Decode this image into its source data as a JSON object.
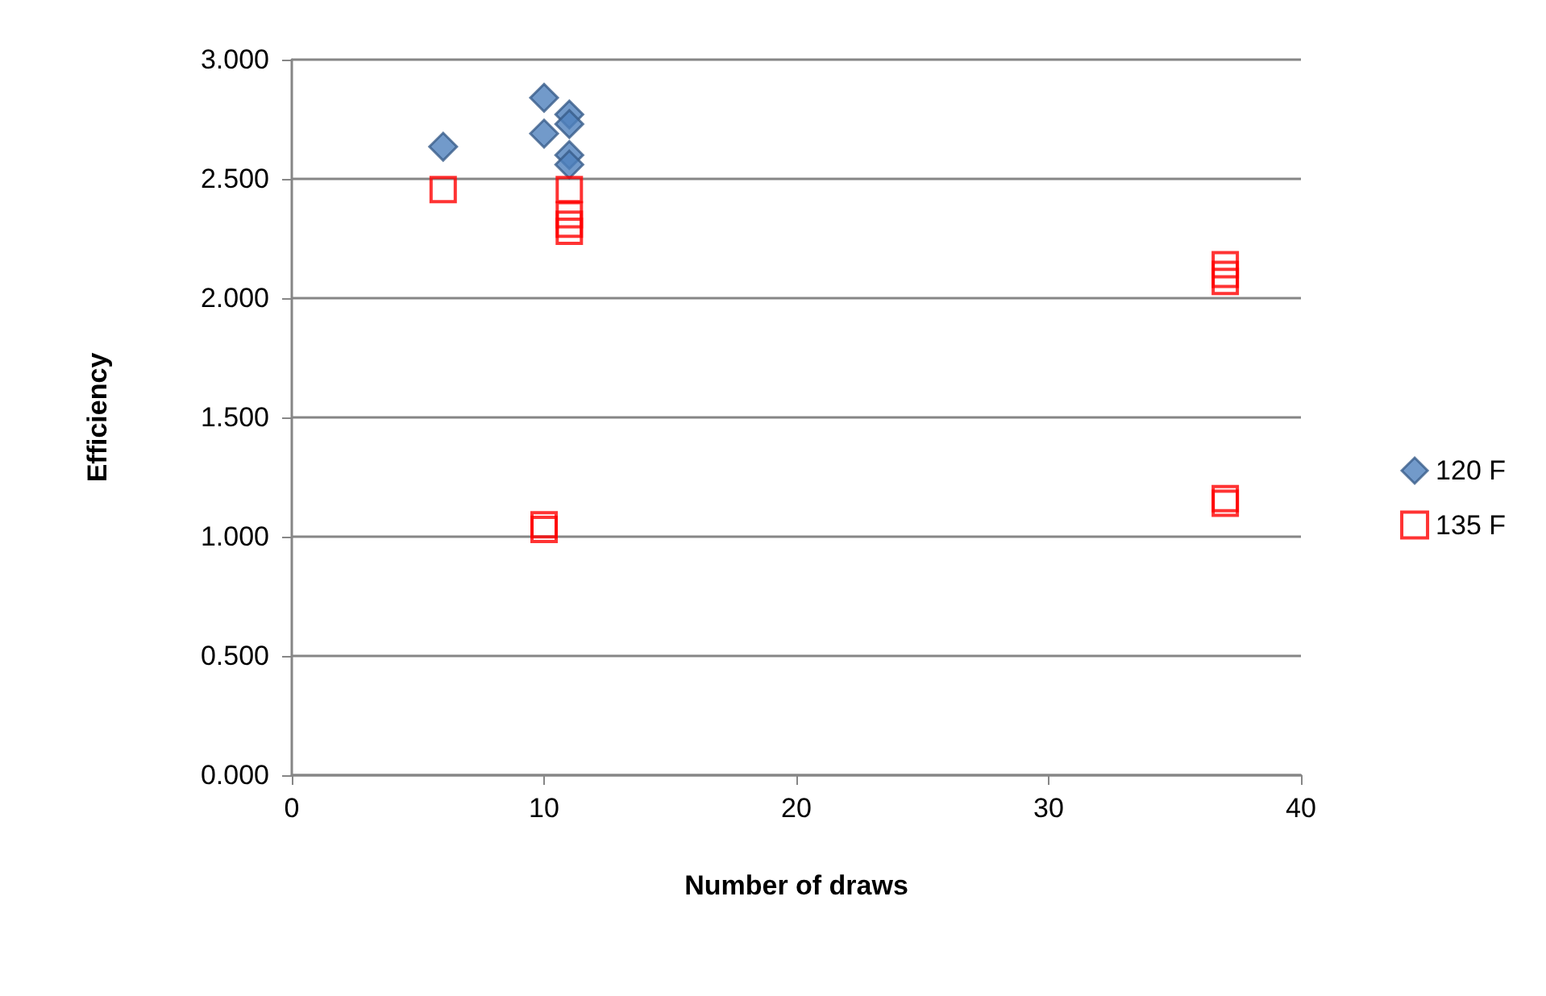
{
  "chart_data": {
    "type": "scatter",
    "xlabel": "Number of draws",
    "ylabel": "Efficiency",
    "xlim": [
      0,
      40
    ],
    "xticks": [
      0,
      10,
      20,
      30,
      40
    ],
    "ylim": [
      0,
      3
    ],
    "yticks": [
      {
        "value": 0,
        "label": "0.000"
      },
      {
        "value": 0.5,
        "label": "0.500"
      },
      {
        "value": 1,
        "label": "1.000"
      },
      {
        "value": 1.5,
        "label": "1.500"
      },
      {
        "value": 2,
        "label": "2.000"
      },
      {
        "value": 2.5,
        "label": "2.500"
      },
      {
        "value": 3,
        "label": "3.000"
      }
    ],
    "grid": "y",
    "legend": "right",
    "series": [
      {
        "name": "120 F",
        "color": "#4f81bd",
        "marker": "diamond",
        "x": [
          6,
          10,
          10,
          11,
          11,
          11,
          11
        ],
        "values": [
          2.635,
          2.84,
          2.69,
          2.77,
          2.73,
          2.6,
          2.56
        ]
      },
      {
        "name": "135 F",
        "color": "#ff0000",
        "marker": "square",
        "x": [
          6,
          11,
          11,
          11,
          11,
          37,
          37,
          37,
          10,
          10,
          37,
          37
        ],
        "values": [
          2.455,
          2.455,
          2.35,
          2.31,
          2.28,
          2.14,
          2.1,
          2.07,
          1.05,
          1.03,
          1.16,
          1.14
        ]
      }
    ]
  }
}
